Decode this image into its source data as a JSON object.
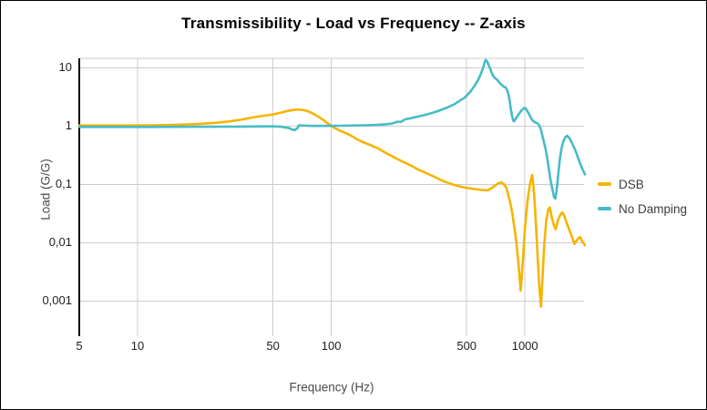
{
  "chart_data": {
    "type": "line",
    "title": "Transmissibility - Load vs Frequency -- Z-axis",
    "xlabel": "Frequency (Hz)",
    "ylabel": "Load (G/G)",
    "x_scale": "log",
    "y_scale": "log",
    "xlim": [
      5,
      2050
    ],
    "ylim": [
      0.00025,
      14.5
    ],
    "grid": true,
    "legend_position": "right",
    "background_color": "#ffffff",
    "gridline_color": "#cccccc",
    "axis_line_color": "#000000",
    "x_ticks": [
      {
        "value": 5,
        "label": "5",
        "gridline": false
      },
      {
        "value": 10,
        "label": "10",
        "gridline": true
      },
      {
        "value": 50,
        "label": "50",
        "gridline": true
      },
      {
        "value": 100,
        "label": "100",
        "gridline": true
      },
      {
        "value": 500,
        "label": "500",
        "gridline": true
      },
      {
        "value": 1000,
        "label": "1000",
        "gridline": true
      }
    ],
    "y_ticks": [
      {
        "value": 10,
        "label": "10"
      },
      {
        "value": 1,
        "label": "1"
      },
      {
        "value": 0.1,
        "label": "0,1"
      },
      {
        "value": 0.01,
        "label": "0,01"
      },
      {
        "value": 0.001,
        "label": "0,001"
      }
    ],
    "series": [
      {
        "name": "DSB",
        "color": "#F5B400",
        "points": [
          [
            5,
            1.02
          ],
          [
            8,
            1.02
          ],
          [
            12,
            1.03
          ],
          [
            16,
            1.05
          ],
          [
            20,
            1.08
          ],
          [
            25,
            1.13
          ],
          [
            30,
            1.2
          ],
          [
            35,
            1.3
          ],
          [
            40,
            1.42
          ],
          [
            45,
            1.5
          ],
          [
            50,
            1.58
          ],
          [
            55,
            1.7
          ],
          [
            60,
            1.82
          ],
          [
            63,
            1.88
          ],
          [
            66,
            1.92
          ],
          [
            70,
            1.9
          ],
          [
            74,
            1.84
          ],
          [
            78,
            1.72
          ],
          [
            82,
            1.58
          ],
          [
            86,
            1.44
          ],
          [
            90,
            1.3
          ],
          [
            95,
            1.14
          ],
          [
            100,
            1.0
          ],
          [
            105,
            0.91
          ],
          [
            110,
            0.84
          ],
          [
            118,
            0.76
          ],
          [
            125,
            0.7
          ],
          [
            135,
            0.6
          ],
          [
            145,
            0.53
          ],
          [
            160,
            0.47
          ],
          [
            175,
            0.41
          ],
          [
            190,
            0.35
          ],
          [
            200,
            0.32
          ],
          [
            215,
            0.28
          ],
          [
            225,
            0.26
          ],
          [
            240,
            0.235
          ],
          [
            250,
            0.22
          ],
          [
            265,
            0.2
          ],
          [
            280,
            0.18
          ],
          [
            310,
            0.155
          ],
          [
            340,
            0.135
          ],
          [
            370,
            0.118
          ],
          [
            400,
            0.106
          ],
          [
            430,
            0.098
          ],
          [
            460,
            0.092
          ],
          [
            500,
            0.087
          ],
          [
            550,
            0.083
          ],
          [
            600,
            0.08
          ],
          [
            640,
            0.079
          ],
          [
            670,
            0.085
          ],
          [
            700,
            0.095
          ],
          [
            730,
            0.104
          ],
          [
            755,
            0.108
          ],
          [
            780,
            0.1
          ],
          [
            800,
            0.088
          ],
          [
            820,
            0.066
          ],
          [
            840,
            0.048
          ],
          [
            860,
            0.032
          ],
          [
            880,
            0.019
          ],
          [
            900,
            0.011
          ],
          [
            925,
            0.0045
          ],
          [
            950,
            0.0015
          ],
          [
            975,
            0.005
          ],
          [
            1000,
            0.018
          ],
          [
            1030,
            0.05
          ],
          [
            1060,
            0.1
          ],
          [
            1090,
            0.145
          ],
          [
            1115,
            0.07
          ],
          [
            1140,
            0.02
          ],
          [
            1165,
            0.005
          ],
          [
            1185,
            0.0018
          ],
          [
            1210,
            0.0008
          ],
          [
            1235,
            0.003
          ],
          [
            1260,
            0.01
          ],
          [
            1290,
            0.025
          ],
          [
            1320,
            0.037
          ],
          [
            1345,
            0.04
          ],
          [
            1380,
            0.026
          ],
          [
            1410,
            0.02
          ],
          [
            1440,
            0.017
          ],
          [
            1480,
            0.024
          ],
          [
            1520,
            0.03
          ],
          [
            1560,
            0.033
          ],
          [
            1600,
            0.028
          ],
          [
            1650,
            0.021
          ],
          [
            1700,
            0.016
          ],
          [
            1750,
            0.0125
          ],
          [
            1800,
            0.0095
          ],
          [
            1840,
            0.0105
          ],
          [
            1890,
            0.012
          ],
          [
            1930,
            0.0125
          ],
          [
            1960,
            0.011
          ],
          [
            2000,
            0.01
          ],
          [
            2040,
            0.009
          ]
        ]
      },
      {
        "name": "No Damping",
        "color": "#47BBC7",
        "points": [
          [
            5,
            0.965
          ],
          [
            8,
            0.965
          ],
          [
            12,
            0.965
          ],
          [
            16,
            0.968
          ],
          [
            20,
            0.97
          ],
          [
            25,
            0.972
          ],
          [
            30,
            0.975
          ],
          [
            35,
            0.978
          ],
          [
            40,
            0.982
          ],
          [
            45,
            0.985
          ],
          [
            50,
            0.985
          ],
          [
            55,
            0.97
          ],
          [
            60,
            0.93
          ],
          [
            63,
            0.87
          ],
          [
            65,
            0.855
          ],
          [
            67,
            0.92
          ],
          [
            68,
            1.03
          ],
          [
            70,
            1.02
          ],
          [
            75,
            1.01
          ],
          [
            80,
            1.005
          ],
          [
            90,
            1.005
          ],
          [
            100,
            1.008
          ],
          [
            115,
            1.012
          ],
          [
            130,
            1.02
          ],
          [
            150,
            1.03
          ],
          [
            170,
            1.045
          ],
          [
            190,
            1.07
          ],
          [
            205,
            1.1
          ],
          [
            215,
            1.16
          ],
          [
            222,
            1.19
          ],
          [
            228,
            1.17
          ],
          [
            235,
            1.24
          ],
          [
            242,
            1.31
          ],
          [
            255,
            1.35
          ],
          [
            270,
            1.41
          ],
          [
            285,
            1.47
          ],
          [
            300,
            1.53
          ],
          [
            320,
            1.62
          ],
          [
            345,
            1.74
          ],
          [
            370,
            1.9
          ],
          [
            400,
            2.1
          ],
          [
            430,
            2.35
          ],
          [
            460,
            2.7
          ],
          [
            490,
            3.1
          ],
          [
            520,
            3.8
          ],
          [
            550,
            4.9
          ],
          [
            575,
            6.3
          ],
          [
            595,
            8.2
          ],
          [
            610,
            10.4
          ],
          [
            620,
            12.6
          ],
          [
            628,
            13.6
          ],
          [
            636,
            13.0
          ],
          [
            645,
            11.8
          ],
          [
            658,
            10.0
          ],
          [
            670,
            8.6
          ],
          [
            682,
            7.4
          ],
          [
            695,
            6.8
          ],
          [
            710,
            6.4
          ],
          [
            725,
            6.0
          ],
          [
            740,
            5.5
          ],
          [
            755,
            5.1
          ],
          [
            775,
            4.75
          ],
          [
            795,
            4.6
          ],
          [
            810,
            4.1
          ],
          [
            822,
            3.5
          ],
          [
            834,
            2.7
          ],
          [
            845,
            2.0
          ],
          [
            856,
            1.55
          ],
          [
            866,
            1.3
          ],
          [
            877,
            1.2
          ],
          [
            890,
            1.28
          ],
          [
            910,
            1.45
          ],
          [
            935,
            1.65
          ],
          [
            960,
            1.85
          ],
          [
            985,
            2.0
          ],
          [
            1000,
            2.05
          ],
          [
            1020,
            1.9
          ],
          [
            1040,
            1.7
          ],
          [
            1060,
            1.5
          ],
          [
            1080,
            1.33
          ],
          [
            1100,
            1.22
          ],
          [
            1125,
            1.16
          ],
          [
            1145,
            1.14
          ],
          [
            1165,
            1.1
          ],
          [
            1185,
            1.02
          ],
          [
            1205,
            0.9
          ],
          [
            1225,
            0.72
          ],
          [
            1250,
            0.55
          ],
          [
            1275,
            0.42
          ],
          [
            1300,
            0.3
          ],
          [
            1330,
            0.18
          ],
          [
            1360,
            0.11
          ],
          [
            1390,
            0.078
          ],
          [
            1415,
            0.06
          ],
          [
            1435,
            0.057
          ],
          [
            1455,
            0.075
          ],
          [
            1480,
            0.13
          ],
          [
            1510,
            0.25
          ],
          [
            1545,
            0.42
          ],
          [
            1580,
            0.55
          ],
          [
            1615,
            0.64
          ],
          [
            1650,
            0.68
          ],
          [
            1690,
            0.63
          ],
          [
            1730,
            0.55
          ],
          [
            1770,
            0.47
          ],
          [
            1810,
            0.4
          ],
          [
            1850,
            0.33
          ],
          [
            1890,
            0.27
          ],
          [
            1930,
            0.225
          ],
          [
            1970,
            0.19
          ],
          [
            2010,
            0.165
          ],
          [
            2040,
            0.148
          ]
        ]
      }
    ]
  }
}
